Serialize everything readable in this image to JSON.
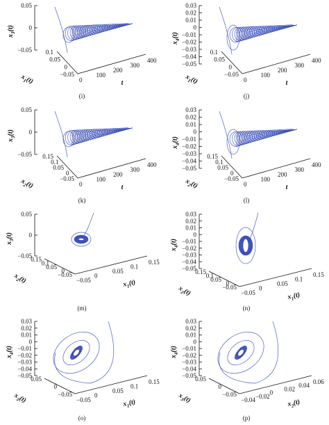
{
  "figure": {
    "panels": [
      {
        "id": "i",
        "label": "(i)",
        "zlabel": "x3(t)",
        "xlabel": "x1(t)",
        "ylabel": "t",
        "zticks": [
          "0.05",
          "0",
          "−0.05"
        ],
        "xticks": [
          "0.1",
          "0.05",
          "0",
          "−0.05"
        ],
        "yticks": [
          "400",
          "300",
          "200",
          "100",
          "0"
        ]
      },
      {
        "id": "j",
        "label": "(j)",
        "zlabel": "x4(t)",
        "xlabel": "x1(t)",
        "ylabel": "t",
        "zticks": [
          "0.03",
          "0.02",
          "0.01",
          "0",
          "−0.01",
          "−0.02",
          "−0.03",
          "−0.04",
          "−0.05"
        ],
        "xticks": [
          "0.1",
          "0.05",
          "0",
          "−0.05"
        ],
        "yticks": [
          "400",
          "300",
          "200",
          "100",
          "0"
        ]
      },
      {
        "id": "k",
        "label": "(k)",
        "zlabel": "x3(t)",
        "xlabel": "x2(t)",
        "ylabel": "t",
        "zticks": [
          "0.05",
          "0",
          "−0.05"
        ],
        "xticks": [
          "0.15",
          "0.1",
          "0.05",
          "0",
          "−0.05"
        ],
        "yticks": [
          "400",
          "300",
          "200",
          "100",
          "0"
        ]
      },
      {
        "id": "l",
        "label": "(l)",
        "zlabel": "x4(t)",
        "xlabel": "x2(t)",
        "ylabel": "t",
        "zticks": [
          "0.03",
          "0.02",
          "0.01",
          "0",
          "−0.01",
          "−0.02",
          "−0.03",
          "−0.04",
          "−0.05"
        ],
        "xticks": [
          "0.15",
          "0.1",
          "0.05",
          "0",
          "−0.05"
        ],
        "yticks": [
          "400",
          "300",
          "200",
          "100",
          "0"
        ]
      },
      {
        "id": "m",
        "label": "(m)",
        "zlabel": "x3(t)",
        "xlabel": "x2(t)",
        "ylabel": "x1(t)",
        "zticks": [
          "0.05",
          "0",
          "−0.05"
        ],
        "xticks": [
          "0.15",
          "0.1",
          "0.05",
          "0",
          "−0.05"
        ],
        "yticks": [
          "0.15",
          "0.1",
          "0.05",
          "0",
          "−0.05"
        ]
      },
      {
        "id": "n",
        "label": "(n)",
        "zlabel": "x4(t)",
        "xlabel": "x2(t)",
        "ylabel": "x1(t)",
        "zticks": [
          "0.03",
          "0.02",
          "0.01",
          "0",
          "−0.01",
          "−0.02",
          "−0.03",
          "−0.04",
          "−0.05"
        ],
        "xticks": [
          "0.15",
          "0.1",
          "0.05",
          "0",
          "−0.05"
        ],
        "yticks": [
          "0.15",
          "0.1",
          "0.05",
          "0",
          "−0.05"
        ]
      },
      {
        "id": "o",
        "label": "(o)",
        "zlabel": "x4(t)",
        "xlabel": "x3(t)",
        "ylabel": "x1(t)",
        "zticks": [
          "0.03",
          "0.02",
          "0.01",
          "0",
          "−0.01",
          "−0.02",
          "−0.03",
          "−0.04",
          "−0.05"
        ],
        "xticks": [
          "0.05",
          "0",
          "−0.05"
        ],
        "yticks": [
          "0.15",
          "0.1",
          "0.05",
          "0",
          "−0.05"
        ]
      },
      {
        "id": "p",
        "label": "(p)",
        "zlabel": "x4(t)",
        "xlabel": "x3(t)",
        "ylabel": "x2(t)",
        "zticks": [
          "0.03",
          "0.02",
          "0.01",
          "0",
          "−0.01",
          "−0.02",
          "−0.03",
          "−0.04",
          "−0.05"
        ],
        "xticks": [
          "0.05",
          "0",
          "−0.05"
        ],
        "yticks": [
          "0.06",
          "0.04",
          "0.02",
          "0",
          "−0.02",
          "−0.04"
        ]
      }
    ]
  },
  "chart_data": [
    {
      "type": "line",
      "panel": "(i)",
      "variables": [
        "t",
        "x1(t)",
        "x3(t)"
      ],
      "zlim": [
        -0.05,
        0.05
      ],
      "tlim": [
        0,
        400
      ],
      "x1lim": [
        -0.05,
        0.1
      ],
      "description_series": "trajectory converging to equilibrium"
    },
    {
      "type": "line",
      "panel": "(j)",
      "variables": [
        "t",
        "x1(t)",
        "x4(t)"
      ],
      "zlim": [
        -0.05,
        0.03
      ],
      "tlim": [
        0,
        400
      ],
      "x1lim": [
        -0.05,
        0.1
      ]
    },
    {
      "type": "line",
      "panel": "(k)",
      "variables": [
        "t",
        "x2(t)",
        "x3(t)"
      ],
      "zlim": [
        -0.05,
        0.05
      ],
      "tlim": [
        0,
        400
      ],
      "x2lim": [
        -0.05,
        0.15
      ]
    },
    {
      "type": "line",
      "panel": "(l)",
      "variables": [
        "t",
        "x2(t)",
        "x4(t)"
      ],
      "zlim": [
        -0.05,
        0.03
      ],
      "tlim": [
        0,
        400
      ],
      "x2lim": [
        -0.05,
        0.15
      ]
    },
    {
      "type": "line",
      "panel": "(m)",
      "variables": [
        "x1(t)",
        "x2(t)",
        "x3(t)"
      ],
      "zlim": [
        -0.05,
        0.05
      ],
      "x1lim": [
        -0.05,
        0.15
      ],
      "x2lim": [
        -0.05,
        0.15
      ]
    },
    {
      "type": "line",
      "panel": "(n)",
      "variables": [
        "x1(t)",
        "x2(t)",
        "x4(t)"
      ],
      "zlim": [
        -0.05,
        0.03
      ],
      "x1lim": [
        -0.05,
        0.15
      ],
      "x2lim": [
        -0.05,
        0.15
      ]
    },
    {
      "type": "line",
      "panel": "(o)",
      "variables": [
        "x1(t)",
        "x3(t)",
        "x4(t)"
      ],
      "zlim": [
        -0.05,
        0.03
      ],
      "x1lim": [
        -0.05,
        0.15
      ],
      "x3lim": [
        -0.05,
        0.05
      ]
    },
    {
      "type": "line",
      "panel": "(p)",
      "variables": [
        "x2(t)",
        "x3(t)",
        "x4(t)"
      ],
      "zlim": [
        -0.05,
        0.03
      ],
      "x2lim": [
        -0.04,
        0.06
      ],
      "x3lim": [
        -0.05,
        0.05
      ]
    }
  ]
}
